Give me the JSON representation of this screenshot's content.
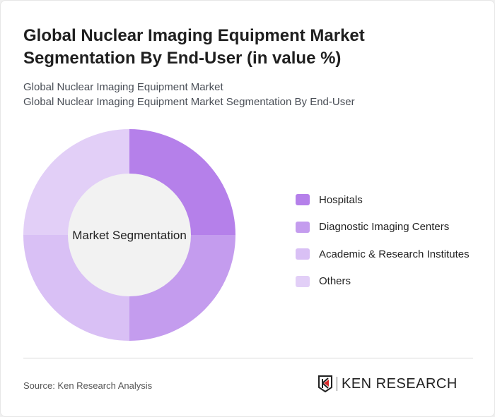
{
  "title": "Global Nuclear Imaging Equipment Market Segmentation By End-User (in value %)",
  "subtitle_1": "Global Nuclear Imaging Equipment Market",
  "subtitle_2": "Global Nuclear Imaging Equipment Market Segmentation By End-User",
  "source": "Source: Ken Research Analysis",
  "logo_text": "KEN RESEARCH",
  "chart_data": {
    "type": "pie",
    "variant": "donut",
    "center_label": "Market Segmentation",
    "categories": [
      "Hospitals",
      "Diagnostic Imaging Centers",
      "Academic & Research Institutes",
      "Others"
    ],
    "values": [
      25,
      25,
      25,
      25
    ],
    "colors": [
      "#b580ea",
      "#c49cee",
      "#d9c0f5",
      "#e2cff7"
    ],
    "legend_position": "right"
  }
}
